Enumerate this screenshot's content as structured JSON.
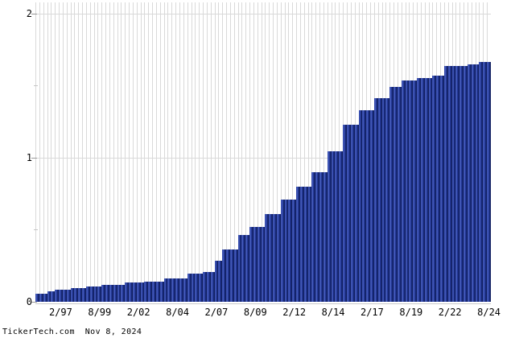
{
  "chart_data": {
    "type": "bar",
    "title": "",
    "xlabel": "",
    "ylabel": "",
    "ylim": [
      0,
      2
    ],
    "grid": "vertical-per-bar",
    "legend": "none",
    "values": [
      0.057,
      0.057,
      0.057,
      0.072,
      0.072,
      0.083,
      0.083,
      0.083,
      0.083,
      0.096,
      0.096,
      0.096,
      0.096,
      0.108,
      0.108,
      0.108,
      0.108,
      0.12,
      0.12,
      0.12,
      0.12,
      0.12,
      0.12,
      0.134,
      0.134,
      0.134,
      0.134,
      0.134,
      0.141,
      0.141,
      0.141,
      0.141,
      0.141,
      0.164,
      0.164,
      0.164,
      0.164,
      0.164,
      0.164,
      0.195,
      0.195,
      0.195,
      0.195,
      0.206,
      0.206,
      0.206,
      0.285,
      0.285,
      0.365,
      0.365,
      0.365,
      0.365,
      0.462,
      0.462,
      0.462,
      0.518,
      0.518,
      0.518,
      0.518,
      0.61,
      0.61,
      0.61,
      0.61,
      0.708,
      0.708,
      0.708,
      0.708,
      0.8,
      0.8,
      0.8,
      0.8,
      0.9,
      0.9,
      0.9,
      0.9,
      1.042,
      1.042,
      1.042,
      1.042,
      1.228,
      1.228,
      1.228,
      1.228,
      1.33,
      1.33,
      1.33,
      1.33,
      1.412,
      1.412,
      1.412,
      1.412,
      1.49,
      1.49,
      1.49,
      1.538,
      1.538,
      1.538,
      1.538,
      1.555,
      1.555,
      1.555,
      1.555,
      1.57,
      1.57,
      1.57,
      1.635,
      1.635,
      1.635,
      1.635,
      1.635,
      1.635,
      1.65,
      1.65,
      1.65,
      1.665,
      1.665,
      1.665
    ],
    "x_tick_labels": [
      "2/97",
      "8/99",
      "2/02",
      "8/04",
      "2/07",
      "8/09",
      "2/12",
      "8/14",
      "2/17",
      "8/19",
      "2/22",
      "8/24"
    ],
    "x_tick_indices": [
      6,
      16,
      26,
      36,
      46,
      56,
      66,
      76,
      86,
      96,
      106,
      116
    ],
    "y_ticks": [
      {
        "value": 0,
        "label": "0",
        "gridline": false,
        "major": true
      },
      {
        "value": 0.5,
        "label": "",
        "gridline": false,
        "major": false
      },
      {
        "value": 1,
        "label": "1",
        "gridline": true,
        "major": true
      },
      {
        "value": 1.5,
        "label": "",
        "gridline": false,
        "major": false
      },
      {
        "value": 2,
        "label": "2",
        "gridline": true,
        "major": true
      }
    ],
    "colors": {
      "background": "#ffffff",
      "bar_main": "#1c2f8c",
      "bar_highlight": "#4c64c4",
      "bar_edge_left": "#2b3f9e",
      "bar_edge_right": "#0e1a52",
      "bar_shade": "#16266e",
      "gridline": "#d9d9d9",
      "baseline": "#c9c9c9",
      "tick_major": "#999999",
      "tick_minor": "#c6c6c6",
      "text": "#000000"
    }
  },
  "footer": {
    "source": "TickerTech.com",
    "date": "Nov 8, 2024",
    "text": "TickerTech.com  Nov 8, 2024"
  }
}
